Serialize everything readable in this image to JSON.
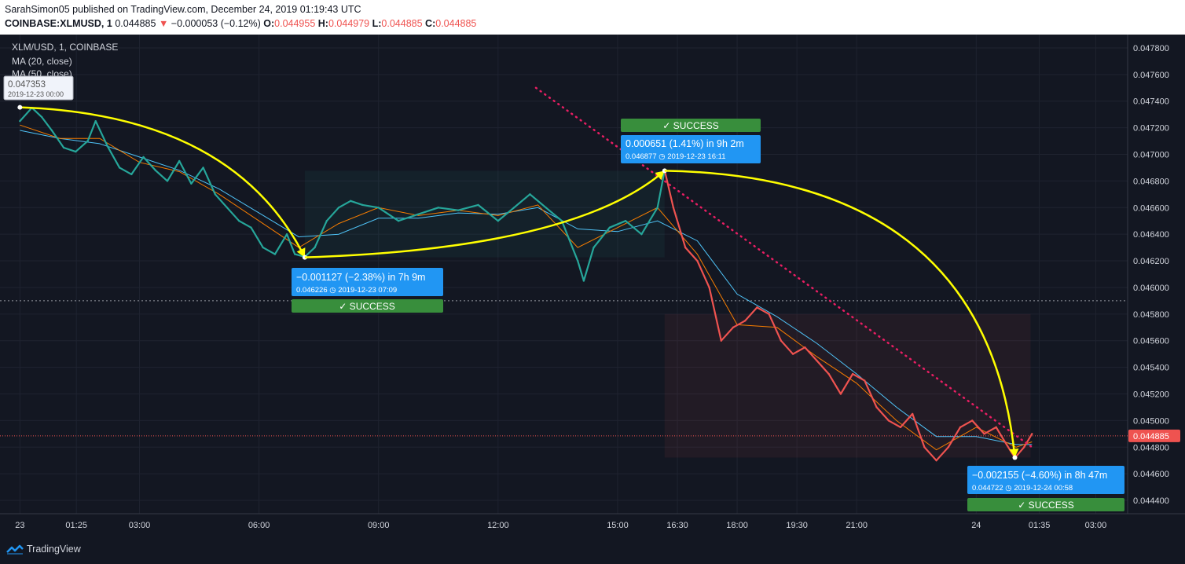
{
  "header": {
    "published": "SarahSimon05 published on TradingView.com, December 24, 2019 01:19:43 UTC",
    "symbol": "COINBASE:XLMUSD, 1",
    "last": "0.044885",
    "change_arrow": "▼",
    "change": "−0.000053 (−0.12%)",
    "o_label": "O:",
    "o_value": "0.044955",
    "h_label": "H:",
    "h_value": "0.044979",
    "l_label": "L:",
    "l_value": "0.044885",
    "c_label": "C:",
    "c_value": "0.044885"
  },
  "legend": {
    "title": "XLM/USD, 1, COINBASE",
    "ma20": "MA (20, close)",
    "ma50": "MA (50, close)"
  },
  "footer": {
    "brand": "TradingView"
  },
  "colors": {
    "background": "#131722",
    "up": "#26a69a",
    "down": "#ef5350",
    "ma20": "#f57c00",
    "ma50": "#4fc3f7",
    "arrow": "#ffff00",
    "trend": "#e91e63",
    "label_bg": "#2196f3",
    "success": "#388e3c"
  },
  "annotations": [
    {
      "time": "00:00",
      "price": 0.047353,
      "value": "0.047353",
      "date": "2019-12-23 00:00"
    },
    {
      "time": "07:09",
      "price": 0.046226,
      "change": "−0.001127 (−2.38%) in 7h 9m",
      "detail": "0.046226 ◷ 2019-12-23  07:09",
      "status": "✓ SUCCESS"
    },
    {
      "time": "16:11",
      "price": 0.046877,
      "change": "0.000651 (1.41%) in 9h 2m",
      "detail": "0.046877 ◷ 2019-12-23  16:11",
      "status": "✓ SUCCESS"
    },
    {
      "time": "24 00:58",
      "price": 0.044722,
      "change": "−0.002155 (−4.60%) in 8h 47m",
      "detail": "0.044722 ◷ 2019-12-24  00:58",
      "status": "✓ SUCCESS"
    }
  ],
  "chart_data": {
    "type": "line",
    "title": "XLM/USD, 1, COINBASE",
    "xlabel": "",
    "ylabel": "",
    "x_unit": "hours since 2019-12-23 00:00 UTC",
    "ylim": [
      0.0443,
      0.0479
    ],
    "xlim": [
      -0.5,
      27.8
    ],
    "x_ticks": [
      {
        "t": 0,
        "label": "23"
      },
      {
        "t": 1.4167,
        "label": "01:25"
      },
      {
        "t": 3,
        "label": "03:00"
      },
      {
        "t": 6,
        "label": "06:00"
      },
      {
        "t": 9,
        "label": "09:00"
      },
      {
        "t": 12,
        "label": "12:00"
      },
      {
        "t": 15,
        "label": "15:00"
      },
      {
        "t": 16.5,
        "label": "16:30"
      },
      {
        "t": 18,
        "label": "18:00"
      },
      {
        "t": 19.5,
        "label": "19:30"
      },
      {
        "t": 21,
        "label": "21:00"
      },
      {
        "t": 24,
        "label": "24"
      },
      {
        "t": 25.5833,
        "label": "01:35"
      },
      {
        "t": 27,
        "label": "03:00"
      }
    ],
    "y_ticks": [
      "0.047800",
      "0.047600",
      "0.047400",
      "0.047200",
      "0.047000",
      "0.046800",
      "0.046600",
      "0.046400",
      "0.046200",
      "0.046000",
      "0.045800",
      "0.045600",
      "0.045400",
      "0.045200",
      "0.045000",
      "0.044800",
      "0.044600",
      "0.044400"
    ],
    "current_price_label": "0.044885",
    "current_price": 0.044885,
    "prev_close_price": 0.0459,
    "grid": true,
    "series": [
      {
        "name": "XLM/USD",
        "x": [
          0,
          0.3,
          0.55,
          0.8,
          1.1,
          1.4,
          1.7,
          1.9,
          2.2,
          2.5,
          2.8,
          3.1,
          3.4,
          3.7,
          4,
          4.3,
          4.6,
          4.9,
          5.2,
          5.5,
          5.8,
          6.1,
          6.4,
          6.7,
          6.9,
          7.15,
          7.4,
          7.7,
          8,
          8.3,
          8.6,
          9,
          9.5,
          10,
          10.5,
          11,
          11.5,
          12,
          12.4,
          12.8,
          13.2,
          13.6,
          14,
          14.15,
          14.4,
          14.8,
          15.2,
          15.6,
          16,
          16.18,
          16.4,
          16.7,
          17,
          17.3,
          17.6,
          17.9,
          18.2,
          18.5,
          18.8,
          19.1,
          19.4,
          19.7,
          20,
          20.3,
          20.6,
          20.9,
          21.2,
          21.5,
          21.8,
          22.1,
          22.4,
          22.7,
          23,
          23.3,
          23.6,
          23.9,
          24.2,
          24.5,
          24.7,
          24.97,
          25.2,
          25.4
        ],
        "y": [
          0.04725,
          0.04735,
          0.04728,
          0.04718,
          0.04705,
          0.04702,
          0.0471,
          0.04725,
          0.04706,
          0.0469,
          0.04685,
          0.04698,
          0.04688,
          0.0468,
          0.04695,
          0.04678,
          0.0469,
          0.0467,
          0.0466,
          0.0465,
          0.04645,
          0.0463,
          0.04625,
          0.0464,
          0.04625,
          0.04623,
          0.0463,
          0.0465,
          0.0466,
          0.04665,
          0.04662,
          0.0466,
          0.0465,
          0.04655,
          0.0466,
          0.04658,
          0.04662,
          0.0465,
          0.0466,
          0.0467,
          0.0466,
          0.0465,
          0.0462,
          0.04605,
          0.0463,
          0.04645,
          0.0465,
          0.0464,
          0.0466,
          0.04688,
          0.0466,
          0.0463,
          0.0462,
          0.046,
          0.0456,
          0.0457,
          0.04575,
          0.04585,
          0.0458,
          0.0456,
          0.0455,
          0.04555,
          0.04545,
          0.04535,
          0.0452,
          0.04535,
          0.0453,
          0.0451,
          0.045,
          0.04495,
          0.04505,
          0.0448,
          0.0447,
          0.0448,
          0.04495,
          0.045,
          0.0449,
          0.04495,
          0.04485,
          0.04472,
          0.0448,
          0.0449
        ]
      },
      {
        "name": "MA (20, close)",
        "x": [
          0,
          1,
          2,
          3,
          4,
          5,
          6,
          7,
          8,
          9,
          10,
          11,
          12,
          13,
          14,
          15,
          16,
          17,
          18,
          19,
          20,
          21,
          22,
          23,
          24,
          25,
          25.4
        ],
        "y": [
          0.04722,
          0.04712,
          0.04712,
          0.04694,
          0.04687,
          0.0467,
          0.0465,
          0.0463,
          0.04648,
          0.0466,
          0.04654,
          0.04658,
          0.04654,
          0.04662,
          0.0463,
          0.04645,
          0.0466,
          0.04625,
          0.04572,
          0.0457,
          0.04548,
          0.04528,
          0.045,
          0.04478,
          0.04495,
          0.0448,
          0.04484
        ]
      },
      {
        "name": "MA (50, close)",
        "x": [
          0,
          1,
          2,
          3,
          4,
          5,
          6,
          7,
          8,
          9,
          10,
          11,
          12,
          13,
          14,
          15,
          16,
          17,
          18,
          19,
          20,
          21,
          22,
          23,
          24,
          25,
          25.4
        ],
        "y": [
          0.04718,
          0.04712,
          0.04708,
          0.04698,
          0.04688,
          0.04674,
          0.04656,
          0.04638,
          0.0464,
          0.04652,
          0.04652,
          0.04656,
          0.04655,
          0.0466,
          0.04644,
          0.04642,
          0.0465,
          0.04635,
          0.04595,
          0.04578,
          0.04558,
          0.04535,
          0.0451,
          0.04488,
          0.04488,
          0.04482,
          0.04482
        ]
      }
    ],
    "trendline": {
      "x": [
        12.95,
        25.4
      ],
      "y": [
        0.0475,
        0.0448
      ]
    },
    "arrows": [
      {
        "from": [
          0,
          0.047353
        ],
        "to": [
          7.15,
          0.046226
        ]
      },
      {
        "from": [
          7.15,
          0.046226
        ],
        "to": [
          16.18,
          0.046877
        ]
      },
      {
        "from": [
          16.18,
          0.046877
        ],
        "to": [
          24.97,
          0.044722
        ]
      }
    ]
  }
}
